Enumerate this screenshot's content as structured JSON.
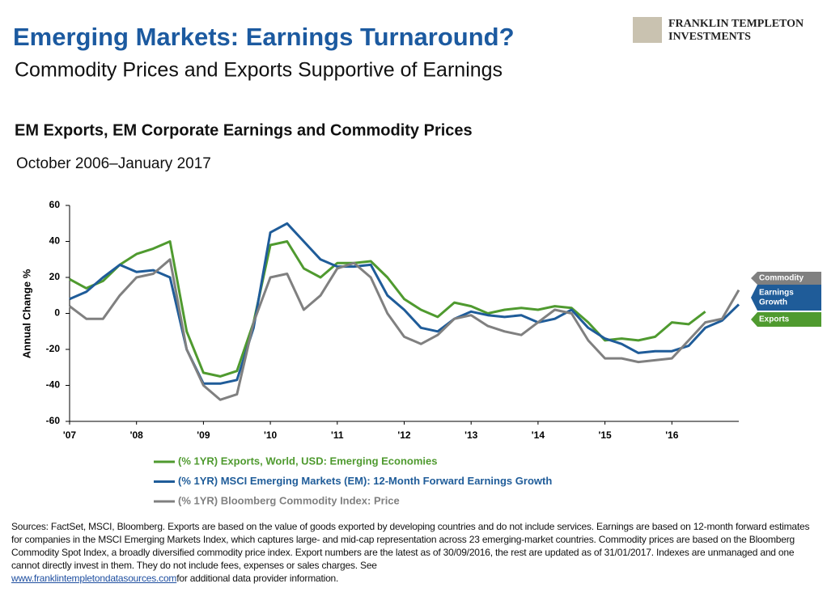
{
  "header": {
    "title": "Emerging Markets: Earnings Turnaround?",
    "subtitle": "Commodity Prices and Exports Supportive of Earnings",
    "logo_lines": [
      "FRANKLIN TEMPLETON",
      "INVESTMENTS"
    ]
  },
  "chart_data": {
    "type": "line",
    "title": "EM Exports, EM Corporate Earnings and Commodity Prices",
    "subtitle": "October 2006–January 2017",
    "y_label": "Annual Change %",
    "categories": [
      "'07",
      null,
      null,
      null,
      "'08",
      null,
      null,
      null,
      "'09",
      null,
      null,
      null,
      "'10",
      null,
      null,
      null,
      "'11",
      null,
      null,
      null,
      "'12",
      null,
      null,
      null,
      "'13",
      null,
      null,
      null,
      "'14",
      null,
      null,
      null,
      "'15",
      null,
      null,
      null,
      "'16",
      null,
      null,
      null,
      null
    ],
    "ylim": [
      -60,
      60
    ],
    "yticks": [
      -60,
      -40,
      -20,
      0,
      20,
      40,
      60
    ],
    "grid": false,
    "series": [
      {
        "name": "(% 1YR) Exports, World, USD: Emerging Economies",
        "tag": "Exports",
        "color": "#4f9a2f",
        "values": [
          19,
          14,
          18,
          27,
          33,
          36,
          40,
          -10,
          -33,
          -35,
          -32,
          -5,
          38,
          40,
          25,
          20,
          28,
          28,
          29,
          20,
          8,
          2,
          -2,
          6,
          4,
          0,
          2,
          3,
          2,
          4,
          3,
          -5,
          -15,
          -14,
          -15,
          -13,
          -5,
          -6,
          1,
          null,
          null
        ]
      },
      {
        "name": "(% 1YR) MSCI Emerging Markets (EM): 12-Month Forward Earnings Growth",
        "tag": "Earnings Growth",
        "color": "#1f5c99",
        "values": [
          8,
          12,
          20,
          27,
          23,
          24,
          20,
          -20,
          -39,
          -39,
          -37,
          -8,
          45,
          50,
          40,
          30,
          26,
          26,
          27,
          10,
          2,
          -8,
          -10,
          -3,
          1,
          -1,
          -2,
          -1,
          -5,
          -3,
          2,
          -8,
          -14,
          -17,
          -22,
          -21,
          -21,
          -18,
          -8,
          -4,
          5
        ]
      },
      {
        "name": "(% 1YR) Bloomberg Commodity Index: Price",
        "tag": "Commodity",
        "color": "#808080",
        "values": [
          4,
          -3,
          -3,
          10,
          20,
          22,
          30,
          -20,
          -40,
          -48,
          -45,
          -5,
          20,
          22,
          2,
          10,
          25,
          28,
          20,
          0,
          -13,
          -17,
          -12,
          -3,
          -1,
          -7,
          -10,
          -12,
          -5,
          2,
          0,
          -15,
          -25,
          -25,
          -27,
          -26,
          -25,
          -15,
          -5,
          -3,
          13
        ]
      }
    ]
  },
  "footer": {
    "sources": "Sources: FactSet, MSCI, Bloomberg. Exports are based on the value of goods exported by developing countries and do not include services. Earnings are based on 12-month forward estimates for companies in the MSCI Emerging Markets Index, which captures large- and mid-cap representation across 23 emerging-market countries. Commodity prices are based on the Bloomberg Commodity Spot Index, a broadly diversified commodity price index. Export numbers are the latest as of 30/09/2016, the rest are updated as of 31/01/2017. Indexes are unmanaged and one cannot directly invest in them. They do not include fees, expenses or sales charges. See",
    "link": "www.franklintempletondatasources.com",
    "link_suffix": "for additional data provider information."
  }
}
